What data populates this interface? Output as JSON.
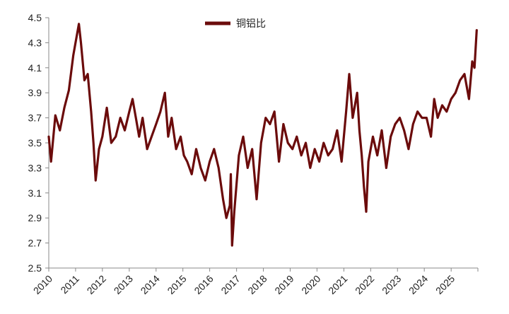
{
  "chart_data": {
    "type": "line",
    "title": "",
    "xlabel": "",
    "ylabel": "",
    "x_ticks": [
      "2010",
      "2011",
      "2012",
      "2013",
      "2014",
      "2015",
      "2016",
      "2017",
      "2018",
      "2019",
      "2020",
      "2021",
      "2022",
      "2023",
      "2024",
      "2025"
    ],
    "xlim": [
      "2010-01-01",
      "2025-12-31"
    ],
    "y_ticks": [
      "2.5",
      "2.7",
      "2.9",
      "3.1",
      "3.3",
      "3.5",
      "3.7",
      "3.9",
      "4.1",
      "4.3",
      "4.5"
    ],
    "ylim": [
      2.5,
      4.5
    ],
    "grid": false,
    "legend_position": "top-center",
    "colors": {
      "series": "#6b0b0b",
      "axis": "#888888"
    },
    "series": [
      {
        "name": "铜铝比",
        "x": [
          "2010-01-01",
          "2010-02-01",
          "2010-04-01",
          "2010-06-01",
          "2010-08-01",
          "2010-10-01",
          "2010-12-01",
          "2011-01-15",
          "2011-02-15",
          "2011-03-15",
          "2011-05-01",
          "2011-06-15",
          "2011-08-01",
          "2011-09-01",
          "2011-10-01",
          "2011-11-15",
          "2012-01-01",
          "2012-03-01",
          "2012-05-01",
          "2012-07-01",
          "2012-09-01",
          "2012-11-01",
          "2013-01-01",
          "2013-02-15",
          "2013-04-01",
          "2013-05-15",
          "2013-07-01",
          "2013-09-01",
          "2013-11-01",
          "2014-01-01",
          "2014-03-01",
          "2014-05-01",
          "2014-06-15",
          "2014-08-01",
          "2014-10-01",
          "2014-12-01",
          "2015-01-15",
          "2015-03-01",
          "2015-05-01",
          "2015-07-01",
          "2015-09-01",
          "2015-11-01",
          "2016-01-01",
          "2016-03-01",
          "2016-05-01",
          "2016-07-01",
          "2016-08-15",
          "2016-10-01",
          "2016-10-15",
          "2016-11-01",
          "2016-12-01",
          "2017-02-01",
          "2017-04-01",
          "2017-06-01",
          "2017-08-01",
          "2017-10-01",
          "2017-12-01",
          "2018-02-01",
          "2018-04-01",
          "2018-06-01",
          "2018-08-01",
          "2018-10-01",
          "2018-12-01",
          "2019-02-01",
          "2019-04-01",
          "2019-06-01",
          "2019-08-01",
          "2019-10-01",
          "2019-12-01",
          "2020-02-01",
          "2020-04-01",
          "2020-06-01",
          "2020-08-01",
          "2020-10-01",
          "2020-12-01",
          "2021-02-01",
          "2021-03-15",
          "2021-05-01",
          "2021-07-01",
          "2021-08-01",
          "2021-09-01",
          "2021-10-01",
          "2021-11-01",
          "2021-12-01",
          "2022-02-01",
          "2022-04-01",
          "2022-06-01",
          "2022-08-01",
          "2022-10-01",
          "2022-12-01",
          "2023-02-01",
          "2023-04-01",
          "2023-06-01",
          "2023-08-01",
          "2023-10-01",
          "2023-12-01",
          "2024-02-01",
          "2024-04-01",
          "2024-05-15",
          "2024-07-01",
          "2024-09-01",
          "2024-11-01",
          "2025-01-01",
          "2025-03-01",
          "2025-05-01",
          "2025-07-01",
          "2025-09-01",
          "2025-10-15",
          "2025-11-15",
          "2025-12-15"
        ],
        "values": [
          3.55,
          3.35,
          3.72,
          3.6,
          3.78,
          3.92,
          4.2,
          4.35,
          4.45,
          4.3,
          4.0,
          4.05,
          3.75,
          3.5,
          3.2,
          3.45,
          3.55,
          3.78,
          3.5,
          3.55,
          3.7,
          3.6,
          3.75,
          3.85,
          3.7,
          3.55,
          3.7,
          3.45,
          3.55,
          3.65,
          3.75,
          3.9,
          3.55,
          3.7,
          3.45,
          3.55,
          3.4,
          3.35,
          3.25,
          3.45,
          3.3,
          3.2,
          3.35,
          3.45,
          3.3,
          3.05,
          2.9,
          3.0,
          3.25,
          2.68,
          2.95,
          3.4,
          3.55,
          3.3,
          3.45,
          3.05,
          3.5,
          3.7,
          3.65,
          3.75,
          3.35,
          3.65,
          3.5,
          3.45,
          3.55,
          3.4,
          3.5,
          3.3,
          3.45,
          3.35,
          3.5,
          3.4,
          3.45,
          3.6,
          3.35,
          3.75,
          4.05,
          3.7,
          3.9,
          3.6,
          3.4,
          3.15,
          2.95,
          3.35,
          3.55,
          3.4,
          3.6,
          3.3,
          3.55,
          3.65,
          3.7,
          3.6,
          3.45,
          3.65,
          3.75,
          3.7,
          3.7,
          3.55,
          3.85,
          3.7,
          3.8,
          3.75,
          3.85,
          3.9,
          4.0,
          4.05,
          3.85,
          4.15,
          4.1,
          4.4
        ]
      }
    ]
  }
}
